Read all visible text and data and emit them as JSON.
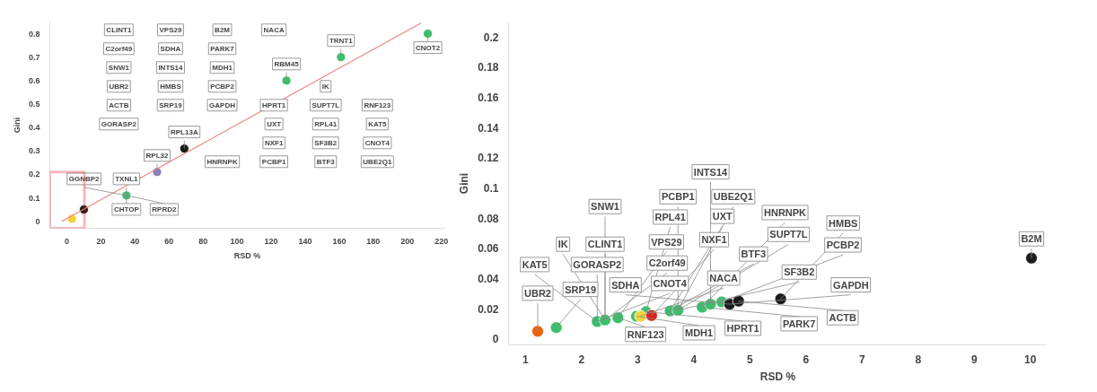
{
  "chart_data": [
    {
      "type": "scatter",
      "xlabel": "RSD %",
      "ylabel": "Gini",
      "xlim": [
        -10,
        222
      ],
      "ylim": [
        -0.03,
        0.85
      ],
      "xticks": [
        0,
        20,
        40,
        60,
        80,
        100,
        120,
        140,
        160,
        180,
        200,
        220
      ],
      "yticks": [
        0,
        0.1,
        0.2,
        0.3,
        0.4,
        0.5,
        0.6,
        0.7,
        0.8
      ],
      "marker": "circle",
      "series": [
        {
          "color": "#3cbf6c",
          "x": [
            212,
            161,
            129,
            35
          ],
          "values": [
            0.8,
            0.7,
            0.6,
            0.11
          ]
        },
        {
          "color": "#1c1c1c",
          "x": [
            69,
            10
          ],
          "values": [
            0.31,
            0.05
          ]
        },
        {
          "color": "#8a7fb8",
          "x": [
            53
          ],
          "values": [
            0.21
          ]
        },
        {
          "color": "#f5d33b",
          "x": [
            3
          ],
          "values": [
            0.01
          ]
        },
        {
          "type": "line",
          "marker": "none",
          "color": "#f08080",
          "x": [
            -3,
            208
          ],
          "values": [
            0.0,
            0.845
          ]
        }
      ],
      "annotations": [
        {
          "text": "CNOT2",
          "x": 212,
          "y": 0.8
        },
        {
          "text": "TRNT1",
          "x": 161,
          "y": 0.7
        },
        {
          "text": "RBM45",
          "x": 129,
          "y": 0.6
        },
        {
          "text": "RPL13A",
          "x": 69,
          "y": 0.31
        },
        {
          "text": "RPL32",
          "x": 53,
          "y": 0.21
        },
        {
          "text": "TXNL1",
          "x": 35,
          "y": 0.11
        },
        {
          "text": "CHTOP",
          "x": 35,
          "y": 0.11
        },
        {
          "text": "GGNBP2",
          "x": 35,
          "y": 0.11
        },
        {
          "text": "RPRD2",
          "x": 35,
          "y": 0.11
        },
        "GORASP2",
        "ACTB",
        "UBR2",
        "SNW1",
        "SRP19",
        "C2orf49",
        "HMBS",
        "INTS14",
        "CLINT1",
        "SDHA",
        "HNRNPK",
        "GAPDH",
        "VPS29",
        "PCBP2",
        "MDH1",
        "PARK7",
        "B2M",
        "PCBP1",
        "NXF1",
        "UXT",
        "HPRT1",
        "NACA",
        "BTF3",
        "SF3B2",
        "RPL41",
        "SUPT7L",
        "IK",
        "UBE2Q1",
        "CNOT4",
        "KAT5",
        "RNF123"
      ]
    },
    {
      "type": "scatter",
      "xlabel": "RSD %",
      "ylabel": "Gini",
      "xlim": [
        0.7,
        10.3
      ],
      "ylim": [
        -0.004,
        0.21
      ],
      "xticks": [
        1,
        2,
        3,
        4,
        5,
        6,
        7,
        8,
        9,
        10
      ],
      "yticks": [
        0,
        0.02,
        0.04,
        0.06,
        0.08,
        0.1,
        0.12,
        0.14,
        0.16,
        0.18,
        0.2
      ],
      "marker": "circle",
      "series": [
        {
          "color": "#3cbf6c",
          "x": [
            1.55,
            2.28,
            2.42,
            2.65,
            2.98,
            3.15,
            3.58,
            3.72,
            4.15,
            4.3,
            4.5
          ],
          "values": [
            0.0075,
            0.0115,
            0.0125,
            0.014,
            0.015,
            0.018,
            0.0185,
            0.019,
            0.021,
            0.023,
            0.0245
          ]
        },
        {
          "color": "#1c1c1c",
          "x": [
            4.64,
            4.8,
            5.55,
            10.02
          ],
          "values": [
            0.023,
            0.025,
            0.0265,
            0.0535
          ]
        },
        {
          "color": "#e8650f",
          "x": [
            1.22
          ],
          "values": [
            0.005
          ]
        },
        {
          "color": "#f5d33b",
          "x": [
            3.05
          ],
          "values": [
            0.015
          ]
        },
        {
          "color": "#e0201b",
          "x": [
            3.25
          ],
          "values": [
            0.0155
          ]
        }
      ],
      "annotations": [
        {
          "text": "UBR2",
          "x": 1.22,
          "y": 0.005
        },
        {
          "text": "SRP19",
          "x": 1.55,
          "y": 0.0075
        },
        {
          "text": "GORASP2",
          "x": 2.28,
          "y": 0.0115
        },
        {
          "text": "CNOT4",
          "x": 2.28,
          "y": 0.0115
        },
        {
          "text": "KAT5",
          "x": 2.28,
          "y": 0.0115
        },
        {
          "text": "CLINT1",
          "x": 2.42,
          "y": 0.0125
        },
        {
          "text": "C2orf49",
          "x": 2.42,
          "y": 0.0125
        },
        {
          "text": "IK",
          "x": 2.42,
          "y": 0.0125
        },
        {
          "text": "SNW1",
          "x": 2.42,
          "y": 0.0125
        },
        {
          "text": "RNF123",
          "x": 2.65,
          "y": 0.014
        },
        {
          "text": "VPS29",
          "x": 2.65,
          "y": 0.014
        },
        {
          "text": "MDH1",
          "x": 2.98,
          "y": 0.015
        },
        {
          "text": "RPL41",
          "x": 3.15,
          "y": 0.018
        },
        {
          "text": "NACA",
          "x": 3.05,
          "y": 0.015
        },
        {
          "text": "HPRT1",
          "x": 3.15,
          "y": 0.018
        },
        {
          "text": "NXF1",
          "x": 3.25,
          "y": 0.0155
        },
        {
          "text": "BTF3",
          "x": 3.58,
          "y": 0.0185
        },
        {
          "text": "UXT",
          "x": 3.58,
          "y": 0.0185
        },
        {
          "text": "PCBP1",
          "x": 3.72,
          "y": 0.019
        },
        {
          "text": "UBE2Q1",
          "x": 3.72,
          "y": 0.019
        },
        {
          "text": "SUPT7L",
          "x": 3.72,
          "y": 0.019
        },
        {
          "text": "SF3B2",
          "x": 3.72,
          "y": 0.019
        },
        {
          "text": "PARK7",
          "x": 4.15,
          "y": 0.021
        },
        {
          "text": "HNRNPK",
          "x": 4.15,
          "y": 0.021
        },
        {
          "text": "INTS14",
          "x": 4.3,
          "y": 0.023
        },
        {
          "text": "PCBP2",
          "x": 4.5,
          "y": 0.0245
        },
        {
          "text": "SDHA",
          "x": 4.64,
          "y": 0.023
        },
        {
          "text": "GAPDH",
          "x": 4.64,
          "y": 0.023
        },
        {
          "text": "ACTB",
          "x": 4.8,
          "y": 0.025
        },
        {
          "text": "HMBS",
          "x": 5.55,
          "y": 0.0265
        },
        {
          "text": "B2M",
          "x": 10.02,
          "y": 0.0535
        }
      ]
    }
  ]
}
